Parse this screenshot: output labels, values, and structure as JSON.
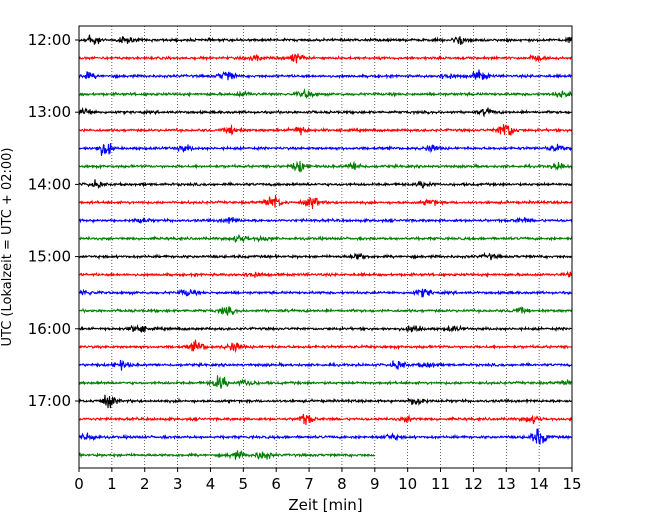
{
  "chart_data": {
    "type": "line",
    "chart_kind": "helicorder",
    "xlabel": "Zeit  [min]",
    "ylabel": "UTC (Lokalzeit = UTC + 02:00)",
    "xlim": [
      0,
      15
    ],
    "x_ticks": [
      0,
      1,
      2,
      3,
      4,
      5,
      6,
      7,
      8,
      9,
      10,
      11,
      12,
      13,
      14,
      15
    ],
    "x_tick_labels": [
      "0",
      "1",
      "2",
      "3",
      "4",
      "5",
      "6",
      "7",
      "8",
      "9",
      "10",
      "11",
      "12",
      "13",
      "14",
      "15"
    ],
    "y_tick_labels": [
      "12:00",
      "13:00",
      "14:00",
      "15:00",
      "16:00",
      "17:00"
    ],
    "grid": "vertical dotted at each minute",
    "trace_interval_min": 15,
    "colors": [
      "#000000",
      "#ff0000",
      "#0000ff",
      "#008000"
    ],
    "traces": [
      {
        "start": "12:00",
        "end_min": 15,
        "bursts": [
          [
            0.4,
            8
          ],
          [
            1.4,
            4
          ],
          [
            11.6,
            6
          ],
          [
            15.0,
            4
          ]
        ]
      },
      {
        "start": "12:15",
        "end_min": 15,
        "bursts": [
          [
            5.4,
            3
          ],
          [
            6.6,
            6
          ],
          [
            13.9,
            3
          ]
        ]
      },
      {
        "start": "12:30",
        "end_min": 15,
        "bursts": [
          [
            0.3,
            4
          ],
          [
            4.5,
            7
          ],
          [
            12.2,
            7
          ],
          [
            11.2,
            4
          ]
        ]
      },
      {
        "start": "12:45",
        "end_min": 15,
        "bursts": [
          [
            5.0,
            3
          ],
          [
            6.9,
            5
          ],
          [
            14.7,
            4
          ]
        ]
      },
      {
        "start": "13:00",
        "end_min": 15,
        "bursts": [
          [
            0.2,
            5
          ],
          [
            12.4,
            4
          ]
        ]
      },
      {
        "start": "13:15",
        "end_min": 15,
        "bursts": [
          [
            4.7,
            6
          ],
          [
            6.7,
            6
          ],
          [
            13.0,
            12
          ]
        ]
      },
      {
        "start": "13:30",
        "end_min": 15,
        "bursts": [
          [
            0.8,
            9
          ],
          [
            3.2,
            4
          ],
          [
            10.7,
            4
          ],
          [
            14.5,
            4
          ]
        ]
      },
      {
        "start": "13:45",
        "end_min": 15,
        "bursts": [
          [
            6.7,
            7
          ],
          [
            8.4,
            5
          ],
          [
            14.6,
            4
          ]
        ]
      },
      {
        "start": "14:00",
        "end_min": 15,
        "bursts": [
          [
            0.5,
            4
          ],
          [
            10.5,
            4
          ]
        ]
      },
      {
        "start": "14:15",
        "end_min": 15,
        "bursts": [
          [
            5.9,
            10
          ],
          [
            7.1,
            7
          ],
          [
            10.7,
            4
          ]
        ]
      },
      {
        "start": "14:30",
        "end_min": 15,
        "bursts": [
          [
            1.9,
            3
          ],
          [
            4.6,
            4
          ],
          [
            13.5,
            3
          ]
        ]
      },
      {
        "start": "14:45",
        "end_min": 15,
        "bursts": [
          [
            4.9,
            5
          ],
          [
            5.6,
            3
          ]
        ]
      },
      {
        "start": "15:00",
        "end_min": 15,
        "bursts": [
          [
            8.5,
            4
          ],
          [
            12.5,
            3
          ]
        ]
      },
      {
        "start": "15:15",
        "end_min": 15,
        "bursts": [
          [
            5.3,
            4
          ],
          [
            15.0,
            3
          ]
        ]
      },
      {
        "start": "15:30",
        "end_min": 15,
        "bursts": [
          [
            0.2,
            3
          ],
          [
            3.3,
            4
          ],
          [
            10.5,
            5
          ]
        ]
      },
      {
        "start": "15:45",
        "end_min": 15,
        "bursts": [
          [
            4.5,
            5
          ],
          [
            13.4,
            3
          ]
        ]
      },
      {
        "start": "16:00",
        "end_min": 15,
        "bursts": [
          [
            1.8,
            6
          ],
          [
            10.2,
            5
          ],
          [
            11.4,
            3
          ]
        ]
      },
      {
        "start": "16:15",
        "end_min": 15,
        "bursts": [
          [
            3.6,
            7
          ],
          [
            4.7,
            6
          ]
        ]
      },
      {
        "start": "16:30",
        "end_min": 15,
        "bursts": [
          [
            1.3,
            5
          ],
          [
            9.7,
            5
          ],
          [
            10.6,
            4
          ]
        ]
      },
      {
        "start": "16:45",
        "end_min": 15,
        "bursts": [
          [
            4.3,
            9
          ],
          [
            5.1,
            4
          ],
          [
            14.9,
            4
          ]
        ]
      },
      {
        "start": "17:00",
        "end_min": 15,
        "bursts": [
          [
            0.9,
            8
          ],
          [
            10.3,
            6
          ]
        ]
      },
      {
        "start": "17:15",
        "end_min": 15,
        "bursts": [
          [
            6.9,
            7
          ],
          [
            10.0,
            3
          ],
          [
            13.8,
            5
          ]
        ]
      },
      {
        "start": "17:30",
        "end_min": 15,
        "bursts": [
          [
            0.3,
            5
          ],
          [
            9.5,
            4
          ],
          [
            14.0,
            11
          ]
        ]
      },
      {
        "start": "17:45",
        "end_min": 9,
        "bursts": [
          [
            4.8,
            5
          ],
          [
            5.6,
            6
          ]
        ]
      }
    ]
  }
}
